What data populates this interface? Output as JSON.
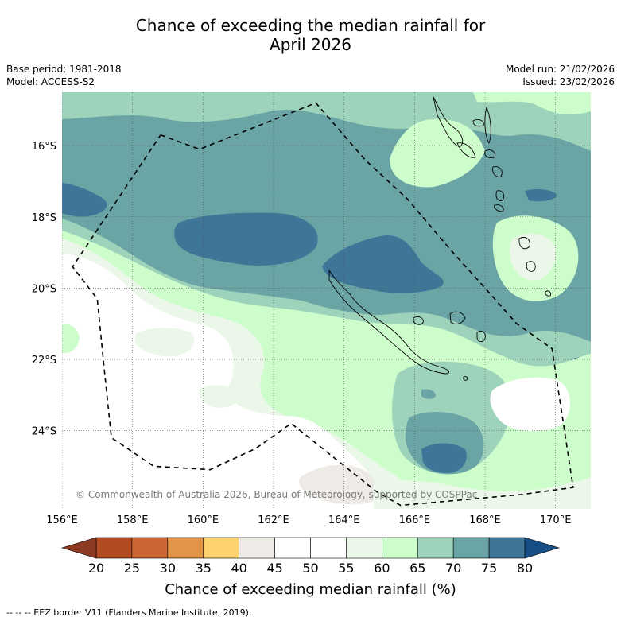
{
  "title_line1": "Chance of exceeding the median rainfall for",
  "title_line2": "April 2026",
  "meta": {
    "base_period": "Base period: 1981-2018",
    "model": "Model: ACCESS-S2",
    "model_run": "Model run: 21/02/2026",
    "issued": "Issued: 23/02/2026"
  },
  "copyright": "© Commonwealth of Australia 2026, Bureau of Meteorology, supported by COSPPac",
  "colorbar_label": "Chance of exceeding median rainfall (%)",
  "footnote": "--  --  -- EEZ border V11 (Flanders Marine Institute, 2019).",
  "colors": {
    "c20_25": "#b24a22",
    "c25_30": "#cc6633",
    "c30_35": "#e29447",
    "c35_40": "#fdd36d",
    "c40_45": "#eeebe6",
    "c45_55": "#ffffff",
    "c55_60": "#ebf7e8",
    "c60_65": "#cdfdcb",
    "c65_70": "#9dd3ba",
    "c70_75": "#6aa4a5",
    "c75_80": "#3f7698",
    "gt80": "#174f84",
    "lt20": "#8c3a22"
  },
  "chart_data": {
    "type": "heatmap",
    "title": "Chance of exceeding the median rainfall for April 2026",
    "colorbar_label": "Chance of exceeding median rainfall (%)",
    "colorbar_ticks": [
      20,
      25,
      30,
      35,
      40,
      45,
      50,
      55,
      60,
      65,
      70,
      75,
      80
    ],
    "x_axis": {
      "range": [
        156,
        171
      ],
      "ticks": [
        156,
        158,
        160,
        162,
        164,
        166,
        168,
        170
      ],
      "tick_labels": [
        "156°E",
        "158°E",
        "160°E",
        "162°E",
        "164°E",
        "166°E",
        "168°E",
        "170°E"
      ]
    },
    "y_axis": {
      "range": [
        -26.2,
        -14.5
      ],
      "ticks": [
        -16,
        -18,
        -20,
        -22,
        -24
      ],
      "tick_labels": [
        "16°S",
        "18°S",
        "20°S",
        "22°S",
        "24°S"
      ]
    },
    "grid": true,
    "regions": [
      {
        "name": "north-band",
        "category": "65-70"
      },
      {
        "name": "central-band",
        "category": "70-75"
      },
      {
        "name": "west-core",
        "category": "75-80"
      },
      {
        "name": "central-core",
        "category": "75-80"
      },
      {
        "name": "south-core",
        "category": "75-80"
      },
      {
        "name": "southwest-area",
        "category": "45-55"
      },
      {
        "name": "south-patch",
        "category": "40-45"
      }
    ],
    "eez_border": [
      [
        158.8,
        -15.7
      ],
      [
        159.9,
        -16.1
      ],
      [
        163.2,
        -14.8
      ],
      [
        164.6,
        -16.4
      ],
      [
        165.8,
        -17.5
      ],
      [
        167,
        -18.9
      ],
      [
        168,
        -20
      ],
      [
        168.9,
        -21
      ],
      [
        169.9,
        -21.7
      ],
      [
        170.5,
        -25.6
      ],
      [
        169,
        -25.8
      ],
      [
        165.6,
        -26.1
      ],
      [
        164.9,
        -25.7
      ],
      [
        162.5,
        -23.8
      ],
      [
        161.5,
        -24.5
      ],
      [
        160.2,
        -25.1
      ],
      [
        158.6,
        -25
      ],
      [
        157.4,
        -24.2
      ],
      [
        157.2,
        -22.3
      ],
      [
        157,
        -20.3
      ],
      [
        156.3,
        -19.4
      ],
      [
        158.8,
        -15.7
      ]
    ]
  }
}
